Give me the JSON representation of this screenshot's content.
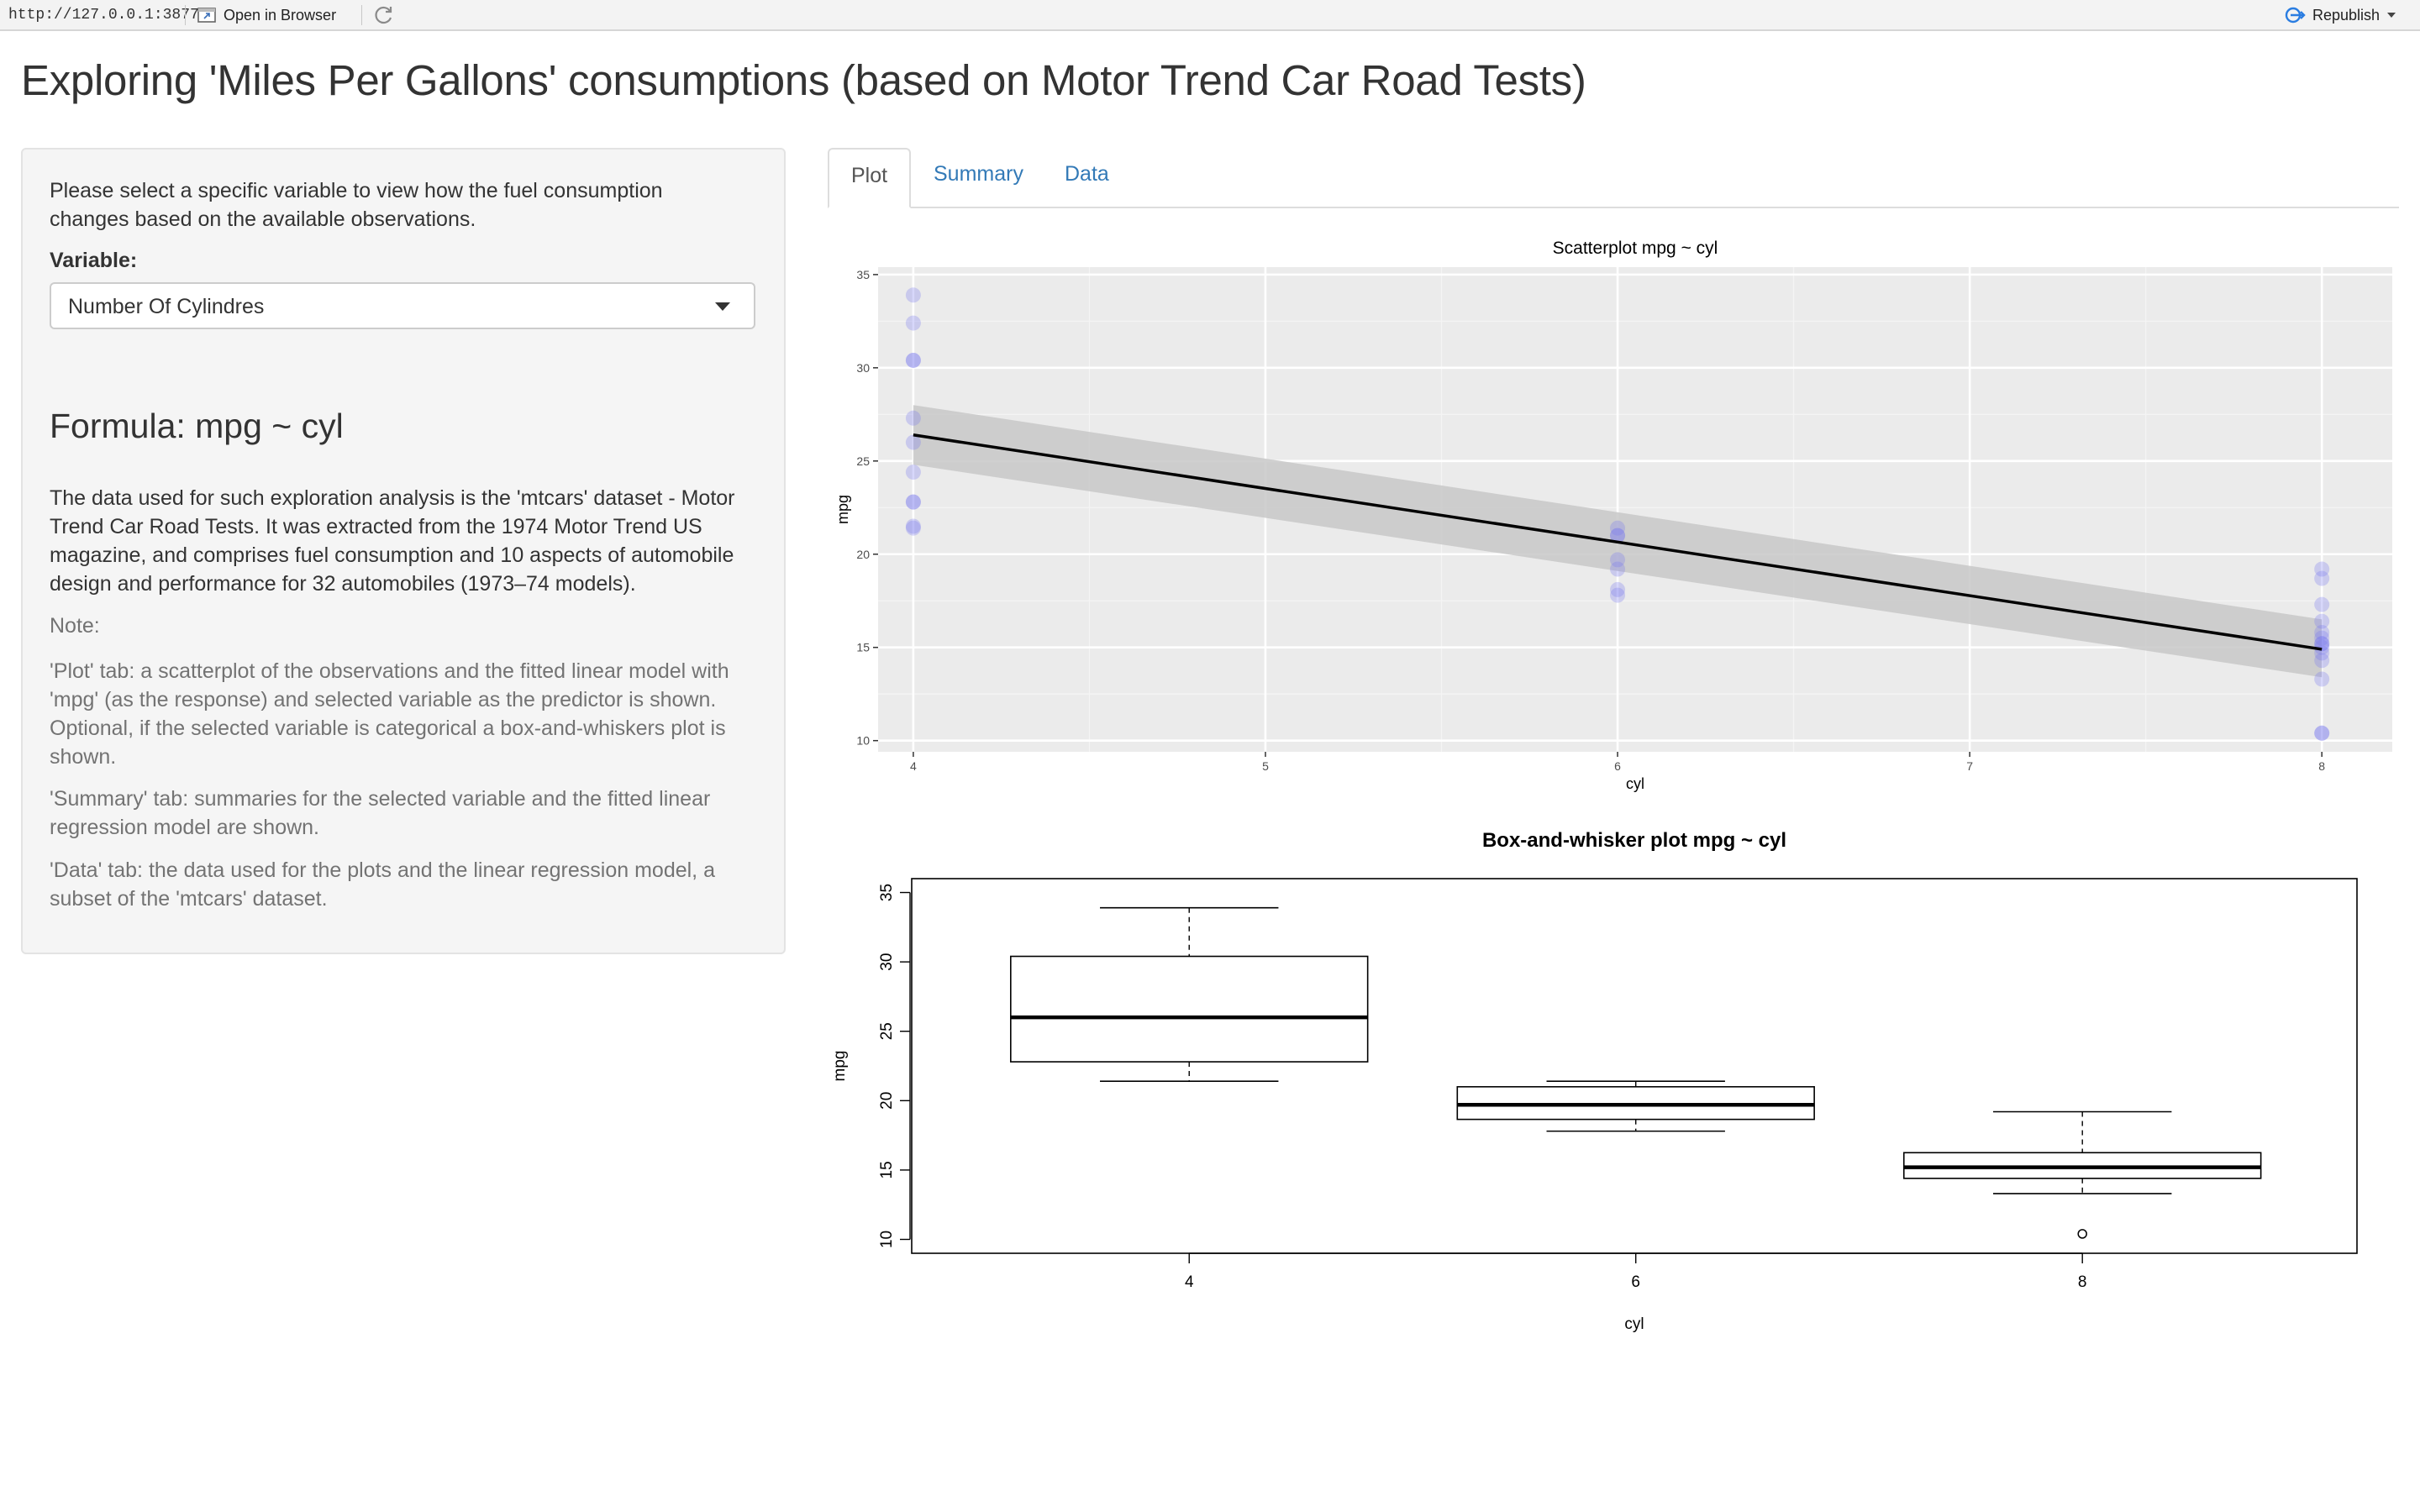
{
  "viewer": {
    "url": "http://127.0.0.1:3877",
    "open_in_browser": "Open in Browser",
    "republish": "Republish"
  },
  "page": {
    "title": "Exploring 'Miles Per Gallons' consumptions (based on Motor Trend Car Road Tests)"
  },
  "sidebar": {
    "intro": "Please select a specific variable to view how the fuel consumption changes based on the available observations.",
    "variable_label": "Variable:",
    "selected_variable": "Number Of Cylindres",
    "formula": "Formula: mpg ~ cyl",
    "description": "The data used for such exploration analysis is the 'mtcars' dataset - Motor Trend Car Road Tests. It was extracted from the 1974 Motor Trend US magazine, and comprises fuel consumption and 10 aspects of automobile design and performance for 32 automobiles (1973–74 models).",
    "note_label": "Note:",
    "plot_note": "'Plot' tab: a scatterplot of the observations and the fitted linear model with 'mpg' (as the response) and selected variable as the predictor is shown. Optional, if the selected variable is categorical a box-and-whiskers plot is shown.",
    "summary_note": "'Summary' tab: summaries for the selected variable and the fitted linear regression model are shown.",
    "data_note": "'Data' tab: the data used for the plots and the linear regression model, a subset of the 'mtcars' dataset."
  },
  "tabs": [
    {
      "label": "Plot",
      "active": true
    },
    {
      "label": "Summary",
      "active": false
    },
    {
      "label": "Data",
      "active": false
    }
  ],
  "colors": {
    "link": "#337ab7",
    "panel_bg": "#ebebeb",
    "point": "#7b7bf0",
    "ribbon": "#c8c8c8",
    "fit_line": "#000000"
  },
  "chart_data": [
    {
      "type": "scatter",
      "title": "Scatterplot mpg ~ cyl",
      "xlabel": "cyl",
      "ylabel": "mpg",
      "xlim": [
        3.9,
        8.2
      ],
      "ylim": [
        9.4,
        35.4
      ],
      "x_ticks": [
        4,
        5,
        6,
        7,
        8
      ],
      "y_ticks": [
        10,
        15,
        20,
        25,
        30,
        35
      ],
      "grid": true,
      "points": [
        {
          "x": 4,
          "y": 22.8
        },
        {
          "x": 4,
          "y": 24.4
        },
        {
          "x": 4,
          "y": 22.8
        },
        {
          "x": 4,
          "y": 32.4
        },
        {
          "x": 4,
          "y": 30.4
        },
        {
          "x": 4,
          "y": 33.9
        },
        {
          "x": 4,
          "y": 21.5
        },
        {
          "x": 4,
          "y": 27.3
        },
        {
          "x": 4,
          "y": 26.0
        },
        {
          "x": 4,
          "y": 30.4
        },
        {
          "x": 4,
          "y": 21.4
        },
        {
          "x": 6,
          "y": 21.0
        },
        {
          "x": 6,
          "y": 21.0
        },
        {
          "x": 6,
          "y": 21.4
        },
        {
          "x": 6,
          "y": 18.1
        },
        {
          "x": 6,
          "y": 19.2
        },
        {
          "x": 6,
          "y": 17.8
        },
        {
          "x": 6,
          "y": 19.7
        },
        {
          "x": 8,
          "y": 18.7
        },
        {
          "x": 8,
          "y": 14.3
        },
        {
          "x": 8,
          "y": 16.4
        },
        {
          "x": 8,
          "y": 17.3
        },
        {
          "x": 8,
          "y": 15.2
        },
        {
          "x": 8,
          "y": 10.4
        },
        {
          "x": 8,
          "y": 10.4
        },
        {
          "x": 8,
          "y": 14.7
        },
        {
          "x": 8,
          "y": 15.5
        },
        {
          "x": 8,
          "y": 15.2
        },
        {
          "x": 8,
          "y": 13.3
        },
        {
          "x": 8,
          "y": 19.2
        },
        {
          "x": 8,
          "y": 15.8
        },
        {
          "x": 8,
          "y": 15.0
        }
      ],
      "fit": {
        "x": [
          4,
          8
        ],
        "y": [
          26.4,
          14.9
        ]
      },
      "confidence_band": {
        "x": [
          4,
          8
        ],
        "lower": [
          24.8,
          13.4
        ],
        "upper": [
          28.0,
          16.5
        ]
      }
    },
    {
      "type": "box",
      "title": "Box-and-whisker plot mpg ~ cyl",
      "xlabel": "cyl",
      "ylabel": "mpg",
      "ylim": [
        9,
        36
      ],
      "y_ticks": [
        10,
        15,
        20,
        25,
        30,
        35
      ],
      "categories": [
        "4",
        "6",
        "8"
      ],
      "boxes": [
        {
          "min": 21.4,
          "q1": 22.8,
          "median": 26.0,
          "q3": 30.4,
          "max": 33.9,
          "outliers": []
        },
        {
          "min": 17.8,
          "q1": 18.65,
          "median": 19.7,
          "q3": 21.0,
          "max": 21.4,
          "outliers": []
        },
        {
          "min": 13.3,
          "q1": 14.4,
          "median": 15.2,
          "q3": 16.25,
          "max": 19.2,
          "outliers": [
            10.4
          ]
        }
      ]
    }
  ]
}
